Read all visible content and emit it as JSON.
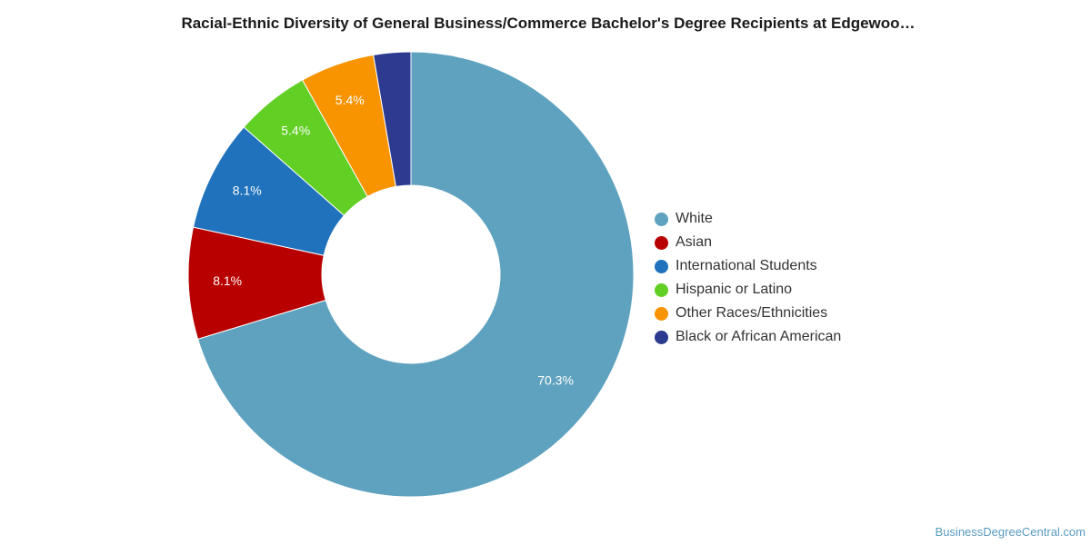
{
  "chart_data": {
    "type": "pie",
    "style": "donut",
    "title": "Racial-Ethnic Diversity of General Business/Commerce Bachelor's Degree Recipients at Edgewoo…",
    "legend_position": "right",
    "slices": [
      {
        "name": "White",
        "value": 70.3,
        "label": "70.3%",
        "color": "#5ea2bf"
      },
      {
        "name": "Asian",
        "value": 8.1,
        "label": "8.1%",
        "color": "#b80000"
      },
      {
        "name": "International Students",
        "value": 8.1,
        "label": "8.1%",
        "color": "#1f72bb"
      },
      {
        "name": "Hispanic or Latino",
        "value": 5.4,
        "label": "5.4%",
        "color": "#61cf24"
      },
      {
        "name": "Other Races/Ethnicities",
        "value": 5.4,
        "label": "5.4%",
        "color": "#f79400"
      },
      {
        "name": "Black or African American",
        "value": 2.7,
        "label": "",
        "color": "#2c3a8f"
      }
    ]
  },
  "footer": {
    "credit": "BusinessDegreeCentral.com"
  }
}
